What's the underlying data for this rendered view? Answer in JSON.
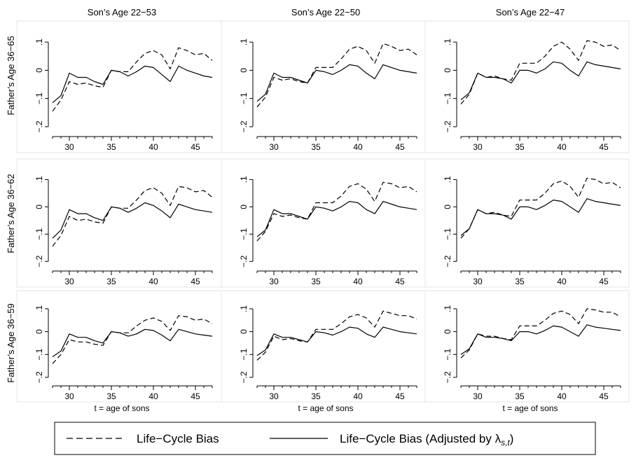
{
  "chart_data": {
    "type": "line",
    "layout": "3x3 small multiples",
    "columns": [
      "Son’s Age 22−53",
      "Son’s Age 22−50",
      "Son’s Age 22−47"
    ],
    "rows": [
      "Father’s Age 36−65",
      "Father’s Age 36−62",
      "Father’s Age 36−59"
    ],
    "xlabel": "t = age of sons",
    "xticks": [
      30,
      35,
      40,
      45
    ],
    "yticks": [
      -0.2,
      -0.1,
      0,
      0.1
    ],
    "ytick_labels": [
      "−.2",
      "−.1",
      "0",
      ".1"
    ],
    "xlim": [
      27.5,
      47.5
    ],
    "ylim": [
      -0.225,
      0.155
    ],
    "x": [
      28,
      29,
      30,
      31,
      32,
      33,
      34,
      35,
      36,
      37,
      38,
      39,
      40,
      41,
      42,
      43,
      44,
      45,
      46,
      47
    ],
    "legend": {
      "position": "bottom",
      "items": [
        {
          "style": "dashed",
          "label": "Life−Cycle Bias"
        },
        {
          "style": "solid",
          "label": "Life−Cycle Bias (Adjusted by λ",
          "subscript": "s,t",
          "suffix": ")"
        }
      ]
    },
    "panels": [
      {
        "row": 0,
        "col": 0,
        "series": [
          {
            "style": "dashed",
            "values": [
              -0.145,
              -0.105,
              -0.04,
              -0.05,
              -0.045,
              -0.055,
              -0.06,
              0.0,
              -0.005,
              -0.005,
              0.03,
              0.06,
              0.07,
              0.055,
              0.005,
              0.08,
              0.07,
              0.055,
              0.06,
              0.035
            ]
          },
          {
            "style": "solid",
            "values": [
              -0.115,
              -0.09,
              -0.01,
              -0.025,
              -0.025,
              -0.04,
              -0.05,
              0.0,
              -0.005,
              -0.02,
              -0.005,
              0.015,
              0.01,
              -0.015,
              -0.04,
              0.015,
              0.0,
              -0.01,
              -0.02,
              -0.025
            ]
          }
        ]
      },
      {
        "row": 0,
        "col": 1,
        "series": [
          {
            "style": "dashed",
            "values": [
              -0.13,
              -0.095,
              -0.025,
              -0.035,
              -0.03,
              -0.04,
              -0.045,
              0.01,
              0.01,
              0.01,
              0.04,
              0.075,
              0.085,
              0.07,
              0.025,
              0.095,
              0.085,
              0.07,
              0.075,
              0.055
            ]
          },
          {
            "style": "solid",
            "values": [
              -0.11,
              -0.085,
              -0.01,
              -0.025,
              -0.025,
              -0.035,
              -0.045,
              0.0,
              -0.005,
              -0.015,
              0.0,
              0.02,
              0.015,
              -0.01,
              -0.03,
              0.02,
              0.01,
              0.0,
              -0.005,
              -0.01
            ]
          }
        ]
      },
      {
        "row": 0,
        "col": 2,
        "series": [
          {
            "style": "dashed",
            "values": [
              -0.12,
              -0.085,
              -0.01,
              -0.025,
              -0.02,
              -0.03,
              -0.035,
              0.025,
              0.025,
              0.025,
              0.05,
              0.085,
              0.1,
              0.075,
              0.035,
              0.105,
              0.1,
              0.085,
              0.09,
              0.07
            ]
          },
          {
            "style": "solid",
            "values": [
              -0.105,
              -0.08,
              -0.01,
              -0.025,
              -0.025,
              -0.03,
              -0.045,
              0.0,
              0.0,
              -0.01,
              0.005,
              0.03,
              0.025,
              0.0,
              -0.02,
              0.03,
              0.02,
              0.015,
              0.01,
              0.005
            ]
          }
        ]
      },
      {
        "row": 1,
        "col": 0,
        "series": [
          {
            "style": "dashed",
            "values": [
              -0.145,
              -0.105,
              -0.035,
              -0.05,
              -0.045,
              -0.055,
              -0.06,
              0.0,
              -0.005,
              -0.005,
              0.025,
              0.06,
              0.07,
              0.05,
              0.005,
              0.075,
              0.07,
              0.055,
              0.06,
              0.035
            ]
          },
          {
            "style": "solid",
            "values": [
              -0.115,
              -0.085,
              -0.01,
              -0.025,
              -0.025,
              -0.04,
              -0.05,
              0.0,
              -0.005,
              -0.02,
              -0.005,
              0.015,
              0.005,
              -0.015,
              -0.04,
              0.01,
              0.0,
              -0.01,
              -0.015,
              -0.02
            ]
          }
        ]
      },
      {
        "row": 1,
        "col": 1,
        "series": [
          {
            "style": "dashed",
            "values": [
              -0.125,
              -0.09,
              -0.025,
              -0.035,
              -0.03,
              -0.04,
              -0.045,
              0.015,
              0.015,
              0.015,
              0.04,
              0.075,
              0.085,
              0.065,
              0.02,
              0.09,
              0.085,
              0.07,
              0.075,
              0.055
            ]
          },
          {
            "style": "solid",
            "values": [
              -0.11,
              -0.085,
              -0.01,
              -0.025,
              -0.025,
              -0.035,
              -0.045,
              0.0,
              -0.005,
              -0.015,
              0.0,
              0.02,
              0.015,
              -0.01,
              -0.025,
              0.02,
              0.01,
              0.0,
              -0.005,
              -0.01
            ]
          }
        ]
      },
      {
        "row": 1,
        "col": 2,
        "series": [
          {
            "style": "dashed",
            "values": [
              -0.115,
              -0.08,
              -0.01,
              -0.025,
              -0.02,
              -0.03,
              -0.035,
              0.025,
              0.025,
              0.025,
              0.05,
              0.085,
              0.095,
              0.075,
              0.035,
              0.105,
              0.1,
              0.085,
              0.09,
              0.07
            ]
          },
          {
            "style": "solid",
            "values": [
              -0.105,
              -0.08,
              -0.01,
              -0.025,
              -0.025,
              -0.03,
              -0.045,
              0.0,
              0.0,
              -0.01,
              0.005,
              0.025,
              0.02,
              0.0,
              -0.02,
              0.03,
              0.02,
              0.015,
              0.01,
              0.005
            ]
          }
        ]
      },
      {
        "row": 2,
        "col": 0,
        "series": [
          {
            "style": "dashed",
            "values": [
              -0.14,
              -0.1,
              -0.035,
              -0.045,
              -0.045,
              -0.055,
              -0.06,
              0.0,
              -0.005,
              -0.005,
              0.025,
              0.05,
              0.06,
              0.045,
              0.005,
              0.07,
              0.065,
              0.05,
              0.055,
              0.035
            ]
          },
          {
            "style": "solid",
            "values": [
              -0.11,
              -0.085,
              -0.01,
              -0.025,
              -0.025,
              -0.04,
              -0.05,
              0.0,
              -0.005,
              -0.02,
              -0.01,
              0.01,
              0.005,
              -0.015,
              -0.04,
              0.01,
              0.0,
              -0.01,
              -0.015,
              -0.02
            ]
          }
        ]
      },
      {
        "row": 2,
        "col": 1,
        "series": [
          {
            "style": "dashed",
            "values": [
              -0.125,
              -0.09,
              -0.02,
              -0.035,
              -0.03,
              -0.04,
              -0.045,
              0.01,
              0.01,
              0.01,
              0.035,
              0.065,
              0.075,
              0.06,
              0.02,
              0.09,
              0.08,
              0.07,
              0.07,
              0.055
            ]
          },
          {
            "style": "solid",
            "values": [
              -0.105,
              -0.08,
              -0.01,
              -0.025,
              -0.025,
              -0.035,
              -0.045,
              0.0,
              -0.005,
              -0.015,
              0.0,
              0.02,
              0.015,
              -0.01,
              -0.025,
              0.02,
              0.01,
              0.0,
              -0.005,
              -0.01
            ]
          }
        ]
      },
      {
        "row": 2,
        "col": 2,
        "series": [
          {
            "style": "dashed",
            "values": [
              -0.115,
              -0.08,
              -0.01,
              -0.02,
              -0.02,
              -0.03,
              -0.035,
              0.025,
              0.025,
              0.025,
              0.05,
              0.08,
              0.09,
              0.075,
              0.035,
              0.1,
              0.095,
              0.085,
              0.085,
              0.065
            ]
          },
          {
            "style": "solid",
            "values": [
              -0.1,
              -0.075,
              -0.01,
              -0.025,
              -0.025,
              -0.03,
              -0.04,
              0.0,
              0.0,
              -0.01,
              0.005,
              0.025,
              0.02,
              0.0,
              -0.02,
              0.03,
              0.02,
              0.015,
              0.01,
              0.005
            ]
          }
        ]
      }
    ]
  }
}
